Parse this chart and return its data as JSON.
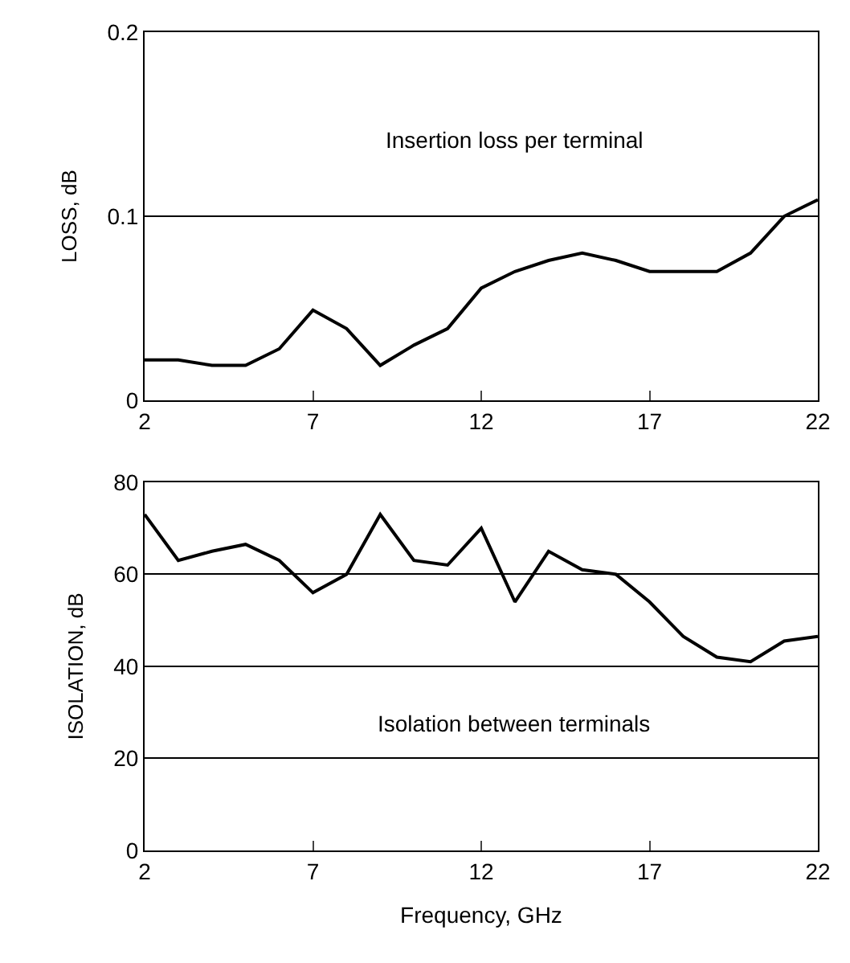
{
  "chart_data": [
    {
      "type": "line",
      "ylabel": "LOSS, dB",
      "annotations": [
        "Insertion loss per terminal"
      ],
      "x": [
        2,
        3,
        4,
        5,
        6,
        7,
        8,
        9,
        10,
        11,
        12,
        13,
        14,
        15,
        16,
        17,
        18,
        19,
        20,
        21,
        22
      ],
      "series": [
        {
          "color": "#000000",
          "values": [
            0.022,
            0.022,
            0.019,
            0.019,
            0.028,
            0.049,
            0.039,
            0.019,
            0.03,
            0.039,
            0.061,
            0.07,
            0.076,
            0.08,
            0.076,
            0.07,
            0.07,
            0.07,
            0.08,
            0.1,
            0.109
          ]
        }
      ],
      "xlim": [
        2,
        22
      ],
      "xticks": [
        2,
        7,
        12,
        17,
        22
      ],
      "ylim": [
        0,
        0.2
      ],
      "yticks": [
        0,
        0.1,
        0.2
      ],
      "grid": "y"
    },
    {
      "type": "line",
      "ylabel": "ISOLATION, dB",
      "xlabel": "Frequency, GHz",
      "annotations": [
        "Isolation between terminals"
      ],
      "x": [
        2,
        3,
        4,
        5,
        6,
        7,
        8,
        9,
        10,
        11,
        12,
        13,
        14,
        15,
        16,
        17,
        18,
        19,
        20,
        21,
        22
      ],
      "series": [
        {
          "color": "#000000",
          "values": [
            73,
            63,
            65,
            66.5,
            63,
            56,
            60,
            73,
            63,
            62,
            70,
            54,
            65,
            61,
            60,
            54,
            46.5,
            42,
            41,
            45.5,
            46.5
          ]
        }
      ],
      "xlim": [
        2,
        22
      ],
      "xticks": [
        2,
        7,
        12,
        17,
        22
      ],
      "ylim": [
        0,
        80
      ],
      "yticks": [
        0,
        20,
        40,
        60,
        80
      ],
      "grid": "y"
    }
  ]
}
